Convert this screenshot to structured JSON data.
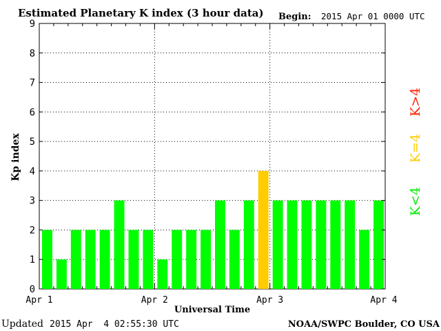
{
  "chart_data": {
    "type": "bar",
    "title": "Estimated Planetary K index (3 hour data)",
    "begin_label": "Begin:",
    "begin_value": "2015 Apr 01 0000 UTC",
    "xlabel": "Universal Time",
    "ylabel": "Kp index",
    "ylim": [
      0,
      9
    ],
    "y_ticks": [
      "0",
      "1",
      "2",
      "3",
      "4",
      "5",
      "6",
      "7",
      "8",
      "9"
    ],
    "x_tick_labels": [
      "Apr 1",
      "Apr 2",
      "Apr 3",
      "Apr 4"
    ],
    "values": [
      2,
      1,
      2,
      2,
      2,
      3,
      2,
      2,
      1,
      2,
      2,
      2,
      3,
      2,
      3,
      4,
      3,
      3,
      3,
      3,
      3,
      3,
      2,
      3
    ],
    "bar_width_hours": 3,
    "colors": {
      "low": "#00ff00",
      "equal": "#ffcc00",
      "high": "#ff2200"
    },
    "legend": [
      "K<4",
      "K=4",
      "K>4"
    ],
    "grid": true
  },
  "footer": {
    "updated_label": "Updated",
    "updated_value": "2015 Apr  4 02:55:30 UTC",
    "credit": "NOAA/SWPC Boulder, CO USA"
  }
}
